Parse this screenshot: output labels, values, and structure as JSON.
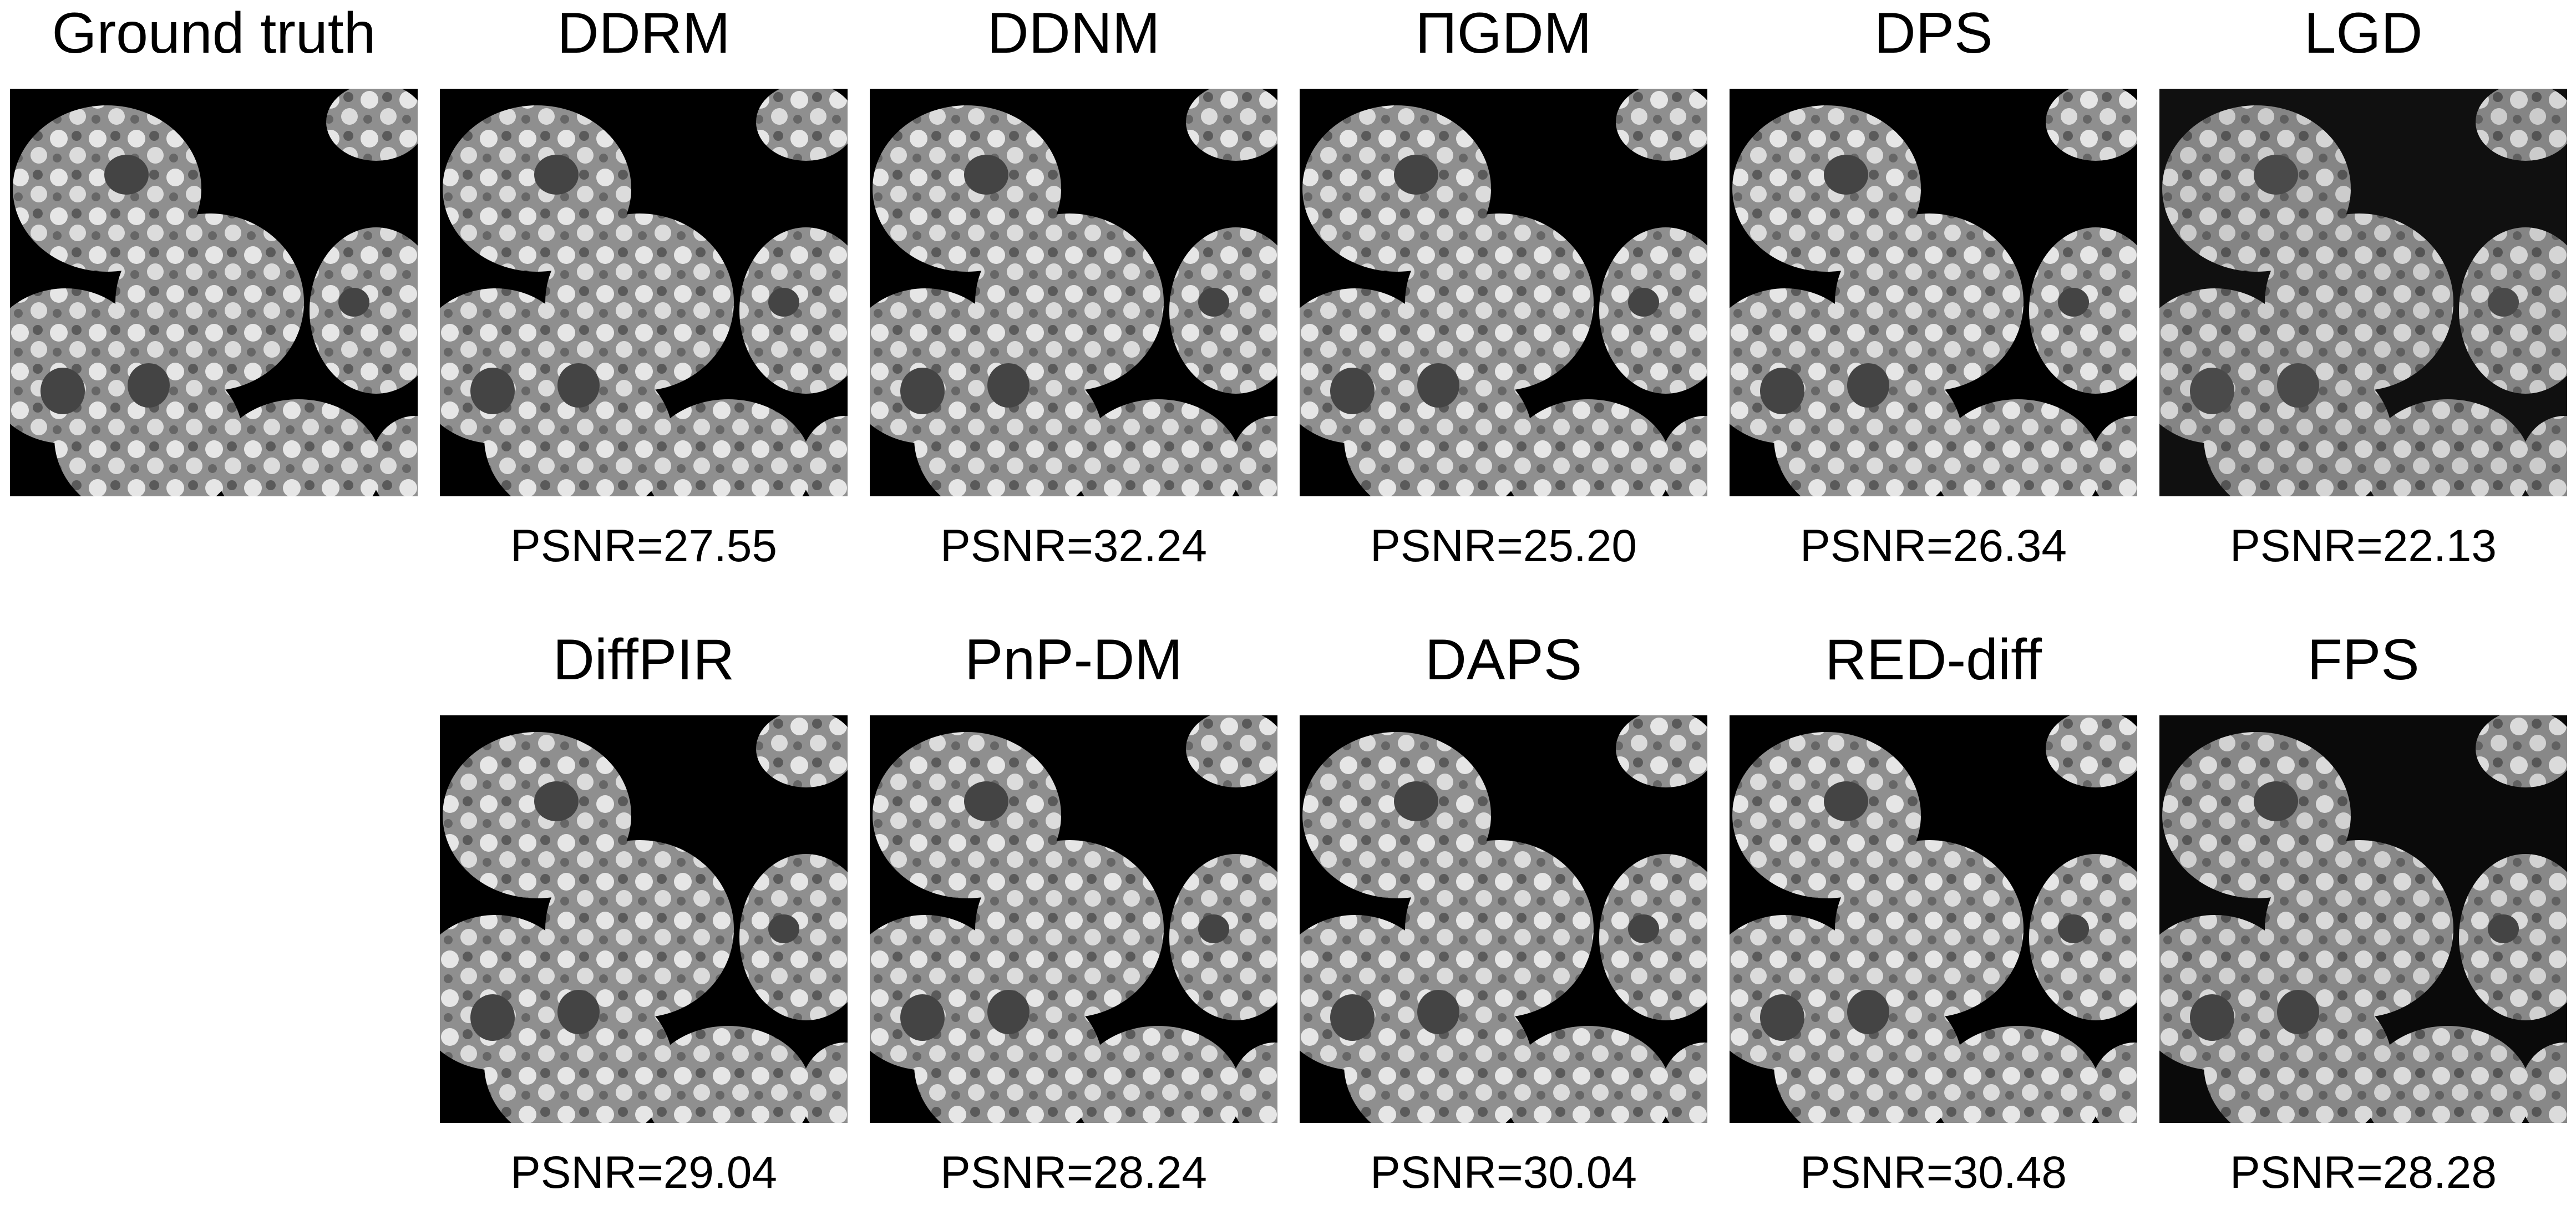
{
  "figure": {
    "ground_truth": {
      "title": "Ground truth"
    },
    "methods_row1": [
      {
        "title": "DDRM",
        "metric": "PSNR=27.55"
      },
      {
        "title": "DDNM",
        "metric": "PSNR=32.24"
      },
      {
        "title": "ΠGDM",
        "metric": "PSNR=25.20"
      },
      {
        "title": "DPS",
        "metric": "PSNR=26.34"
      },
      {
        "title": "LGD",
        "metric": "PSNR=22.13"
      }
    ],
    "methods_row2": [
      {
        "title": "DiffPIR",
        "metric": "PSNR=29.04"
      },
      {
        "title": "PnP-DM",
        "metric": "PSNR=28.24"
      },
      {
        "title": "DAPS",
        "metric": "PSNR=30.04"
      },
      {
        "title": "RED-diff",
        "metric": "PSNR=30.48"
      },
      {
        "title": "FPS",
        "metric": "PSNR=28.28"
      }
    ]
  },
  "colors": {
    "background": "#ffffff",
    "image_background": "#000000",
    "cell_fill": "#9a9a9a"
  }
}
